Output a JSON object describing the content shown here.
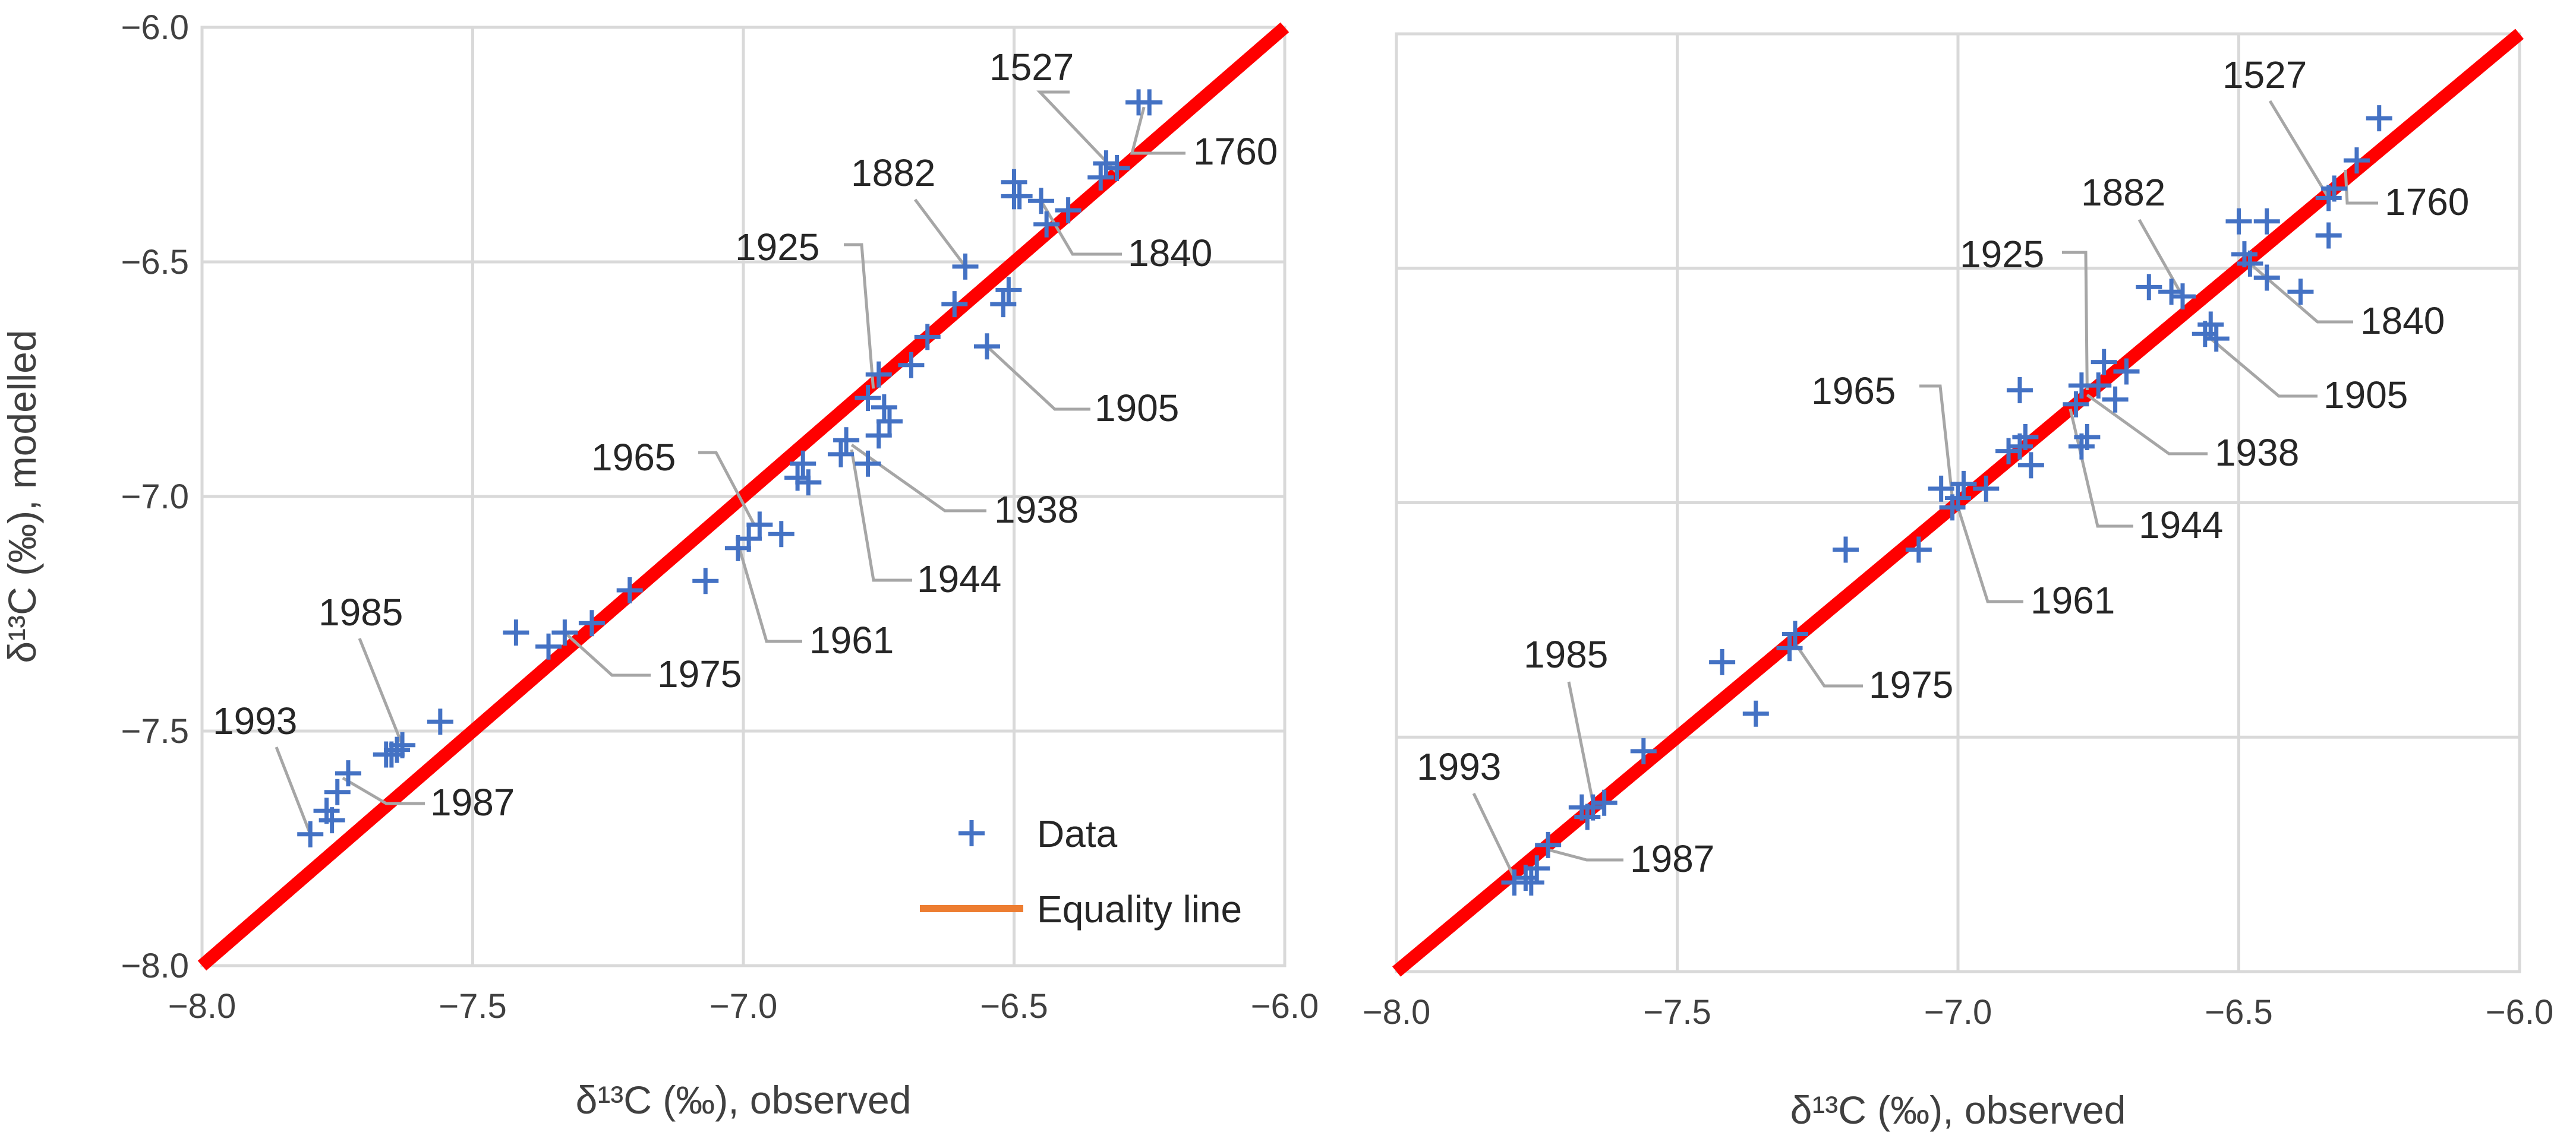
{
  "chart_data": [
    {
      "type": "scatter",
      "title": "",
      "xlabel": "δ¹³C (‰), observed",
      "ylabel": "δ¹³C (‰), modelled",
      "xlim": [
        -8.0,
        -6.0
      ],
      "ylim": [
        -8.0,
        -6.0
      ],
      "xticks": [
        -8.0,
        -7.5,
        -7.0,
        -6.5,
        -6.0
      ],
      "yticks": [
        -8.0,
        -7.5,
        -7.0,
        -6.5,
        -6.0
      ],
      "xtick_labels": [
        "−8.0",
        "−7.5",
        "−7.0",
        "−6.5",
        "−6.0"
      ],
      "ytick_labels": [
        "−8.0",
        "−7.5",
        "−7.0",
        "−6.5",
        "−6.0"
      ],
      "grid": true,
      "legend": {
        "placement": "bottom-right",
        "entries": [
          {
            "name": "Data",
            "color": "#4472C4"
          },
          {
            "name": "Equality line",
            "color": "#ED7D31"
          }
        ]
      },
      "equality_line": {
        "color": "#FF0000",
        "from": [
          -8.0,
          -8.0
        ],
        "to": [
          -6.0,
          -6.0
        ]
      },
      "series": [
        {
          "name": "Data",
          "color": "#4472C4",
          "marker": "plus",
          "points": [
            [
              -6.27,
              -6.16
            ],
            [
              -6.25,
              -6.16
            ],
            [
              -6.33,
              -6.29
            ],
            [
              -6.34,
              -6.32
            ],
            [
              -6.31,
              -6.3
            ],
            [
              -6.4,
              -6.39
            ],
            [
              -6.45,
              -6.37
            ],
            [
              -6.5,
              -6.33
            ],
            [
              -6.5,
              -6.36
            ],
            [
              -6.49,
              -6.36
            ],
            [
              -6.44,
              -6.42
            ],
            [
              -6.59,
              -6.51
            ],
            [
              -6.61,
              -6.59
            ],
            [
              -6.52,
              -6.59
            ],
            [
              -6.51,
              -6.56
            ],
            [
              -6.55,
              -6.68
            ],
            [
              -6.66,
              -6.66
            ],
            [
              -6.69,
              -6.72
            ],
            [
              -6.75,
              -6.74
            ],
            [
              -6.77,
              -6.79
            ],
            [
              -6.74,
              -6.81
            ],
            [
              -6.73,
              -6.84
            ],
            [
              -6.75,
              -6.87
            ],
            [
              -6.81,
              -6.88
            ],
            [
              -6.82,
              -6.91
            ],
            [
              -6.77,
              -6.93
            ],
            [
              -6.89,
              -6.93
            ],
            [
              -6.9,
              -6.96
            ],
            [
              -6.88,
              -6.97
            ],
            [
              -6.93,
              -7.08
            ],
            [
              -6.97,
              -7.06
            ],
            [
              -6.99,
              -7.09
            ],
            [
              -7.01,
              -7.11
            ],
            [
              -7.07,
              -7.18
            ],
            [
              -7.21,
              -7.2
            ],
            [
              -7.28,
              -7.27
            ],
            [
              -7.33,
              -7.29
            ],
            [
              -7.36,
              -7.32
            ],
            [
              -7.42,
              -7.29
            ],
            [
              -7.56,
              -7.48
            ],
            [
              -7.63,
              -7.53
            ],
            [
              -7.64,
              -7.54
            ],
            [
              -7.65,
              -7.55
            ],
            [
              -7.66,
              -7.55
            ],
            [
              -7.73,
              -7.59
            ],
            [
              -7.75,
              -7.63
            ],
            [
              -7.76,
              -7.69
            ],
            [
              -7.77,
              -7.67
            ],
            [
              -7.8,
              -7.72
            ]
          ]
        }
      ],
      "annotations": [
        {
          "text": "1527",
          "x": -6.31,
          "y": -6.31
        },
        {
          "text": "1760",
          "x": -6.26,
          "y": -6.17
        },
        {
          "text": "1840",
          "x": -6.45,
          "y": -6.37
        },
        {
          "text": "1882",
          "x": -6.59,
          "y": -6.51
        },
        {
          "text": "1925",
          "x": -6.76,
          "y": -6.77
        },
        {
          "text": "1905",
          "x": -6.55,
          "y": -6.68
        },
        {
          "text": "1938",
          "x": -6.8,
          "y": -6.89
        },
        {
          "text": "1944",
          "x": -6.8,
          "y": -6.9
        },
        {
          "text": "1965",
          "x": -6.98,
          "y": -7.06
        },
        {
          "text": "1961",
          "x": -7.01,
          "y": -7.1
        },
        {
          "text": "1975",
          "x": -7.33,
          "y": -7.29
        },
        {
          "text": "1985",
          "x": -7.63,
          "y": -7.53
        },
        {
          "text": "1987",
          "x": -7.74,
          "y": -7.6
        },
        {
          "text": "1993",
          "x": -7.8,
          "y": -7.72
        }
      ]
    },
    {
      "type": "scatter",
      "title": "",
      "xlabel": "δ¹³C (‰), observed",
      "ylabel": "",
      "xlim": [
        -8.0,
        -6.0
      ],
      "ylim": [
        -8.0,
        -6.0
      ],
      "xticks": [
        -8.0,
        -7.5,
        -7.0,
        -6.5,
        -6.0
      ],
      "xtick_labels": [
        "−8.0",
        "−7.5",
        "−7.0",
        "−6.5",
        "−6.0"
      ],
      "grid": true,
      "equality_line": {
        "color": "#FF0000",
        "from": [
          -8.0,
          -8.0
        ],
        "to": [
          -6.0,
          -6.0
        ]
      },
      "series": [
        {
          "name": "Data",
          "color": "#4472C4",
          "marker": "plus",
          "points": [
            [
              -6.25,
              -6.18
            ],
            [
              -6.29,
              -6.27
            ],
            [
              -6.33,
              -6.33
            ],
            [
              -6.34,
              -6.35
            ],
            [
              -6.34,
              -6.43
            ],
            [
              -6.39,
              -6.55
            ],
            [
              -6.45,
              -6.4
            ],
            [
              -6.5,
              -6.4
            ],
            [
              -6.49,
              -6.47
            ],
            [
              -6.48,
              -6.49
            ],
            [
              -6.45,
              -6.52
            ],
            [
              -6.55,
              -6.62
            ],
            [
              -6.56,
              -6.64
            ],
            [
              -6.54,
              -6.65
            ],
            [
              -6.6,
              -6.56
            ],
            [
              -6.62,
              -6.55
            ],
            [
              -6.66,
              -6.54
            ],
            [
              -6.7,
              -6.72
            ],
            [
              -6.74,
              -6.7
            ],
            [
              -6.75,
              -6.75
            ],
            [
              -6.72,
              -6.78
            ],
            [
              -6.79,
              -6.79
            ],
            [
              -6.78,
              -6.75
            ],
            [
              -6.77,
              -6.86
            ],
            [
              -6.78,
              -6.88
            ],
            [
              -6.89,
              -6.76
            ],
            [
              -6.88,
              -6.86
            ],
            [
              -6.89,
              -6.88
            ],
            [
              -6.87,
              -6.92
            ],
            [
              -6.91,
              -6.89
            ],
            [
              -6.95,
              -6.97
            ],
            [
              -6.99,
              -6.96
            ],
            [
              -7.0,
              -6.99
            ],
            [
              -7.01,
              -7.01
            ],
            [
              -7.03,
              -6.97
            ],
            [
              -7.07,
              -7.1
            ],
            [
              -7.2,
              -7.1
            ],
            [
              -7.29,
              -7.28
            ],
            [
              -7.3,
              -7.31
            ],
            [
              -7.36,
              -7.45
            ],
            [
              -7.42,
              -7.34
            ],
            [
              -7.56,
              -7.53
            ],
            [
              -7.63,
              -7.64
            ],
            [
              -7.65,
              -7.65
            ],
            [
              -7.66,
              -7.67
            ],
            [
              -7.67,
              -7.65
            ],
            [
              -7.73,
              -7.73
            ],
            [
              -7.75,
              -7.78
            ],
            [
              -7.76,
              -7.81
            ],
            [
              -7.77,
              -7.8
            ],
            [
              -7.79,
              -7.81
            ]
          ]
        }
      ],
      "annotations": [
        {
          "text": "1527",
          "x": -6.34,
          "y": -6.35
        },
        {
          "text": "1760",
          "x": -6.31,
          "y": -6.29
        },
        {
          "text": "1840",
          "x": -6.48,
          "y": -6.49
        },
        {
          "text": "1882",
          "x": -6.6,
          "y": -6.56
        },
        {
          "text": "1925",
          "x": -6.77,
          "y": -6.76
        },
        {
          "text": "1905",
          "x": -6.56,
          "y": -6.64
        },
        {
          "text": "1938",
          "x": -6.77,
          "y": -6.77
        },
        {
          "text": "1944",
          "x": -6.8,
          "y": -6.8
        },
        {
          "text": "1965",
          "x": -7.01,
          "y": -6.99
        },
        {
          "text": "1961",
          "x": -7.0,
          "y": -7.01
        },
        {
          "text": "1975",
          "x": -7.29,
          "y": -7.3
        },
        {
          "text": "1985",
          "x": -7.65,
          "y": -7.64
        },
        {
          "text": "1987",
          "x": -7.73,
          "y": -7.74
        },
        {
          "text": "1993",
          "x": -7.79,
          "y": -7.8
        }
      ]
    }
  ]
}
